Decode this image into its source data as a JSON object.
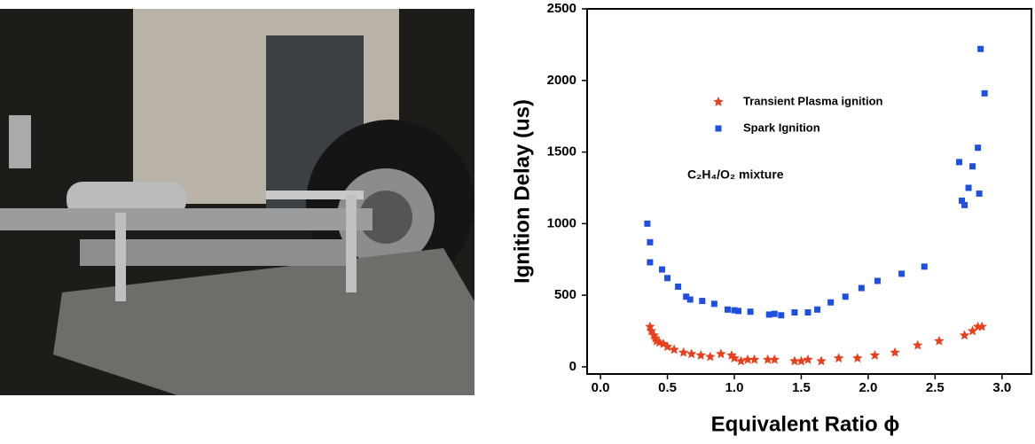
{
  "chart_data": {
    "type": "scatter",
    "xlabel": "Equivalent Ratio ϕ",
    "ylabel": "Ignition Delay (us)",
    "annotation": "C₂H₄/O₂ mixture",
    "xlim": [
      -0.1,
      3.22
    ],
    "ylim": [
      -50,
      2500
    ],
    "xticks": [
      {
        "value": 0,
        "label": "0.0"
      },
      0.5,
      {
        "value": 1,
        "label": "1.0"
      },
      1.5,
      {
        "value": 2,
        "label": "2.0"
      },
      2.5,
      {
        "value": 3,
        "label": "3.0"
      }
    ],
    "yticks": [
      0,
      500,
      1000,
      1500,
      2000,
      2500
    ],
    "series": [
      {
        "name": "Transient Plasma ignition",
        "color": "#e8401c",
        "marker": "star",
        "x": [
          0.37,
          0.38,
          0.4,
          0.41,
          0.42,
          0.44,
          0.47,
          0.5,
          0.55,
          0.62,
          0.68,
          0.75,
          0.82,
          0.9,
          0.98,
          1.0,
          1.05,
          1.1,
          1.15,
          1.25,
          1.3,
          1.45,
          1.5,
          1.55,
          1.65,
          1.78,
          1.92,
          2.05,
          2.2,
          2.37,
          2.53,
          2.72,
          2.78,
          2.82,
          2.85
        ],
        "values": [
          280,
          250,
          220,
          200,
          180,
          170,
          160,
          140,
          120,
          100,
          90,
          80,
          70,
          90,
          80,
          60,
          40,
          50,
          50,
          50,
          50,
          40,
          40,
          50,
          40,
          60,
          60,
          80,
          100,
          150,
          180,
          220,
          250,
          280,
          280
        ]
      },
      {
        "name": "Spark Ignition",
        "color": "#1f4fe0",
        "marker": "square",
        "x": [
          0.35,
          0.37,
          0.37,
          0.46,
          0.5,
          0.58,
          0.64,
          0.67,
          0.76,
          0.85,
          0.95,
          1.0,
          1.03,
          1.12,
          1.26,
          1.3,
          1.35,
          1.45,
          1.55,
          1.62,
          1.72,
          1.83,
          1.95,
          2.07,
          2.25,
          2.42,
          2.68,
          2.7,
          2.72,
          2.75,
          2.78,
          2.82,
          2.83,
          2.84,
          2.87
        ],
        "values": [
          1000,
          870,
          730,
          680,
          620,
          560,
          490,
          470,
          460,
          440,
          400,
          395,
          390,
          385,
          365,
          370,
          360,
          380,
          380,
          400,
          450,
          490,
          550,
          600,
          650,
          700,
          1430,
          1160,
          1130,
          1250,
          1400,
          1530,
          1210,
          2220,
          1910
        ]
      }
    ]
  }
}
